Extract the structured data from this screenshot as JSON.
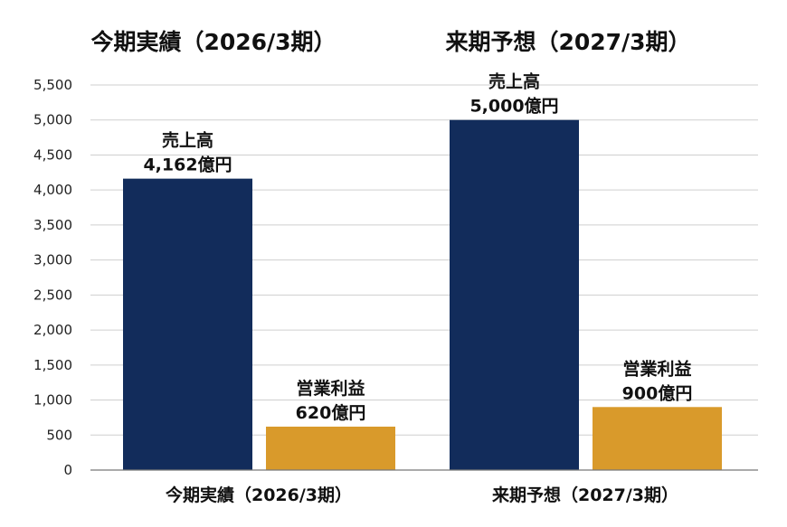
{
  "chart_data": {
    "type": "bar",
    "title": "",
    "xlabel": "",
    "ylabel": "",
    "ylim": [
      0,
      5500
    ],
    "yticks": [
      0,
      500,
      1000,
      1500,
      2000,
      2500,
      3000,
      3500,
      4000,
      4500,
      5000,
      5500
    ],
    "ytick_labels": [
      "0",
      "500",
      "1,000",
      "1,500",
      "2,000",
      "2,500",
      "3,000",
      "3,500",
      "4,000",
      "4,500",
      "5,000",
      "5,500"
    ],
    "grid": true,
    "legend": "none",
    "categories": [
      "今期実績（2026/3期）",
      "来期予想（2027/3期）"
    ],
    "group_headers": [
      "今期実績（2026/3期）",
      "来期予想（2027/3期）"
    ],
    "bars": [
      {
        "category": 0,
        "slot": 0,
        "value": 4162,
        "label_top": "売上高",
        "label_bottom": "4,162億円",
        "color": "#122c5b"
      },
      {
        "category": 0,
        "slot": 1,
        "value": 620,
        "label_top": "営業利益",
        "label_bottom": "620億円",
        "color": "#d99a2b"
      },
      {
        "category": 1,
        "slot": 0,
        "value": 5000,
        "label_top": "売上高",
        "label_bottom": "5,000億円",
        "color": "#122c5b"
      },
      {
        "category": 1,
        "slot": 1,
        "value": 900,
        "label_top": "営業利益",
        "label_bottom": "900億円",
        "color": "#d99a2b"
      }
    ]
  },
  "colors": {
    "net_sales": "#122c5b",
    "operating_profit": "#d99a2b",
    "grid": "#cfcfcf",
    "text": "#111111"
  }
}
